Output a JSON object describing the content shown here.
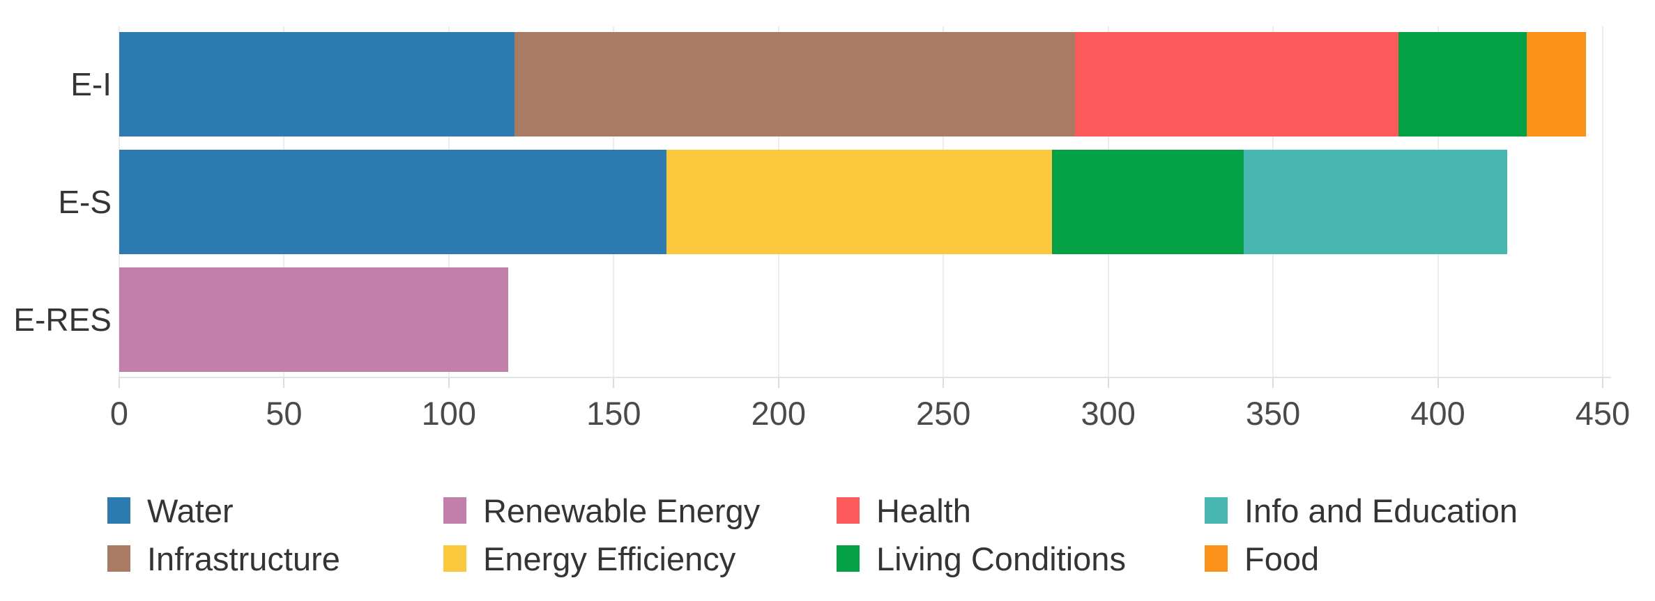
{
  "chart_data": {
    "type": "bar",
    "orientation": "horizontal",
    "stacked": true,
    "title": "",
    "xlabel": "",
    "ylabel": "",
    "grid": true,
    "legend_position": "bottom",
    "categories": [
      "E-I",
      "E-S",
      "E-RES"
    ],
    "series": [
      {
        "name": "Water",
        "color": "#2E7BB2",
        "values": [
          120,
          166,
          0
        ]
      },
      {
        "name": "Infrastructure",
        "color": "#A87B62",
        "values": [
          170,
          0,
          0
        ]
      },
      {
        "name": "Renewable Energy",
        "color": "#C27FA9",
        "values": [
          0,
          0,
          118
        ]
      },
      {
        "name": "Energy Efficiency",
        "color": "#F9C83D",
        "values": [
          0,
          117,
          0
        ]
      },
      {
        "name": "Health",
        "color": "#FD5A5B",
        "values": [
          98,
          0,
          0
        ]
      },
      {
        "name": "Living Conditions",
        "color": "#04A046",
        "values": [
          39,
          58,
          0
        ]
      },
      {
        "name": "Info and Education",
        "color": "#48B6B1",
        "values": [
          0,
          80,
          0
        ]
      },
      {
        "name": "Food",
        "color": "#FB9119",
        "values": [
          18,
          0,
          0
        ]
      }
    ],
    "totals": {
      "E-I": 445,
      "E-S": 421,
      "E-RES": 118
    },
    "axis": {
      "min": 0,
      "max": 450,
      "tick_interval": 50,
      "tick_labels": [
        "0",
        "50",
        "100",
        "150",
        "200",
        "250",
        "300",
        "350",
        "400",
        "450"
      ]
    },
    "legend_order": [
      "Water",
      "Renewable Energy",
      "Health",
      "Info and Education",
      "Infrastructure",
      "Energy Efficiency",
      "Living Conditions",
      "Food"
    ]
  }
}
